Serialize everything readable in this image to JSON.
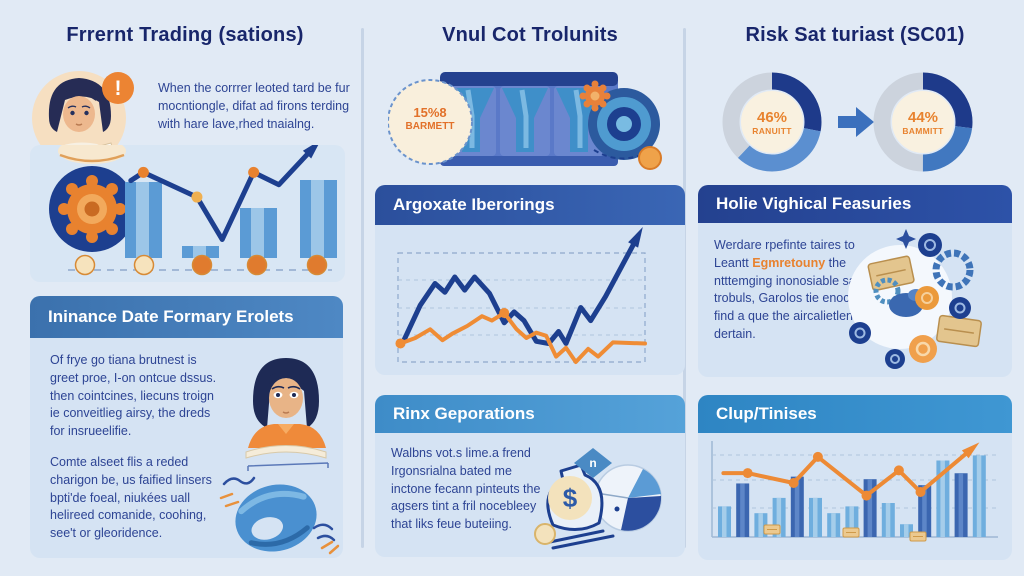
{
  "columns": {
    "col1": {
      "title": "Frrernt Trading (sations)",
      "alert_symbol": "!",
      "intro_text": "When the corrrer leoted tard be fur mocntiongle, difat ad firons terding with hare lave,rhed tnaialng.",
      "section_header": "Ininance Date Formary Erolets",
      "para1": "Of frye go tiana brutnest is greet proe, I-on ontcue dssus. then cointcines, liecuns troign ie conveitlieg airsy, the dreds for insrueelifie.",
      "para2": "Comte alseet flis a reded charigon be, us faified linsers bpti'de foeal, niukées uall helireed comanide, coohing, see't or gleoridence."
    },
    "col2": {
      "title": "Vnul Cot Trolunits",
      "badge_line1": "15%8",
      "badge_line2": "BARMETT",
      "sectionA_header": "Argoxate Iberorings",
      "sectionB_header": "Rinx Geporations",
      "sectionB_para": "Walbns vot.s lime.a frend Irgonsrialna bated me inctone fecann pinteuts the agsers tint a fril nocebleey that liks feue buteiing.",
      "diamond_label": "n",
      "money_symbol": "$"
    },
    "col3": {
      "title": "Risk Sat turiast (SC01)",
      "donut1_pct": "46%",
      "donut1_label": "RANUITT",
      "donut2_pct": "44%",
      "donut2_label": "BAMMITT",
      "sectionA_header": "Holie Vighical Feasuries",
      "sectionA_para_before": "Werdare rpefinte taires to Leantt ",
      "sectionA_para_highlight": "Egmretouny",
      "sectionA_para_after": " the ntttemging inonosiable sace trobuls, Garolos tie enocies find a que the aircalietlenei dertain.",
      "sectionB_header": "Clup/Tinises"
    }
  },
  "colors": {
    "navy": "#1d3f8f",
    "mid_blue": "#4a7fc1",
    "light_blue": "#6faede",
    "orange": "#e8822f",
    "gray": "#ccd3dd",
    "cream": "#f6e8cc",
    "page_bg": "#e1eaf5",
    "panel_bg": "#d5e3f3"
  },
  "chart_data": [
    {
      "id": "col1-trend",
      "type": "bar",
      "title": "",
      "note": "bar chart with rising trend line and arrow; coin markers on baseline; values normalized 0-1, no axis labels shown",
      "values": [
        0.76,
        0.12,
        0.5,
        0.78
      ],
      "line": [
        [
          0.32,
          0.74
        ],
        [
          0.36,
          0.8
        ],
        [
          0.53,
          0.62
        ],
        [
          0.61,
          0.31
        ],
        [
          0.71,
          0.8
        ],
        [
          0.79,
          0.71
        ],
        [
          0.9,
          0.98
        ]
      ],
      "line_dots": [
        1,
        2,
        4
      ]
    },
    {
      "id": "col2-lines",
      "type": "line",
      "title": "",
      "note": "two-series line chart in dashed frame, navy series ends in up arrow; values normalized 0-1, no axis labels shown",
      "grid": "dashed",
      "series": [
        {
          "name": "navy",
          "color": "#1d3f8f",
          "points": [
            [
              0.02,
              0.18
            ],
            [
              0.09,
              0.52
            ],
            [
              0.15,
              0.72
            ],
            [
              0.19,
              0.64
            ],
            [
              0.23,
              0.78
            ],
            [
              0.27,
              0.66
            ],
            [
              0.31,
              0.78
            ],
            [
              0.37,
              0.63
            ],
            [
              0.43,
              0.36
            ],
            [
              0.47,
              0.46
            ],
            [
              0.51,
              0.38
            ],
            [
              0.56,
              0.19
            ],
            [
              0.61,
              0.17
            ],
            [
              0.65,
              0.28
            ],
            [
              0.68,
              0.17
            ],
            [
              0.74,
              0.5
            ],
            [
              0.78,
              0.38
            ],
            [
              0.84,
              0.6
            ],
            [
              0.97,
              1.15
            ]
          ]
        },
        {
          "name": "orange",
          "color": "#ef8c35",
          "points": [
            [
              0.01,
              0.17
            ],
            [
              0.07,
              0.22
            ],
            [
              0.13,
              0.3
            ],
            [
              0.18,
              0.2
            ],
            [
              0.22,
              0.26
            ],
            [
              0.28,
              0.33
            ],
            [
              0.34,
              0.42
            ],
            [
              0.38,
              0.38
            ],
            [
              0.43,
              0.45
            ],
            [
              0.48,
              0.3
            ],
            [
              0.52,
              0.22
            ],
            [
              0.56,
              0.27
            ],
            [
              0.6,
              0.24
            ],
            [
              0.64,
              0.05
            ],
            [
              0.68,
              0.13
            ],
            [
              0.72,
              0.0
            ],
            [
              0.77,
              0.12
            ],
            [
              0.81,
              0.05
            ],
            [
              0.87,
              0.18
            ],
            [
              1.0,
              0.17
            ]
          ]
        }
      ]
    },
    {
      "id": "col3-donuts",
      "type": "pie",
      "title": "",
      "note": "two donut gauges with arrow between; segment fractions clockwise from top",
      "donuts": [
        {
          "pct": "46%",
          "label": "RANUITT",
          "segments": [
            [
              "#1e3a8a",
              0.28
            ],
            [
              "#5b8fd0",
              0.34
            ],
            [
              "#ccd3dd",
              0.38
            ]
          ]
        },
        {
          "pct": "44%",
          "label": "BAMMITT",
          "segments": [
            [
              "#1e3a8a",
              0.27
            ],
            [
              "#4178c0",
              0.23
            ],
            [
              "#ccd3dd",
              0.5
            ]
          ]
        }
      ]
    },
    {
      "id": "col3-bars",
      "type": "bar",
      "title": "",
      "note": "15-bar chart with orange trend line ending in up arrow; values normalized 0-1, no axis labels shown",
      "values": [
        0.36,
        0.63,
        0.28,
        0.46,
        0.71,
        0.46,
        0.28,
        0.36,
        0.68,
        0.4,
        0.15,
        0.61,
        0.9,
        0.75,
        0.96
      ],
      "palette": [
        "l",
        "d",
        "l",
        "l",
        "d",
        "l",
        "l",
        "l",
        "d",
        "l",
        "l",
        "d",
        "l",
        "d",
        "l"
      ],
      "line": [
        [
          0.02,
          0.71
        ],
        [
          0.11,
          0.71
        ],
        [
          0.28,
          0.6
        ],
        [
          0.37,
          0.89
        ],
        [
          0.55,
          0.46
        ],
        [
          0.67,
          0.74
        ],
        [
          0.75,
          0.5
        ],
        [
          0.94,
          0.98
        ]
      ],
      "line_dots": [
        1,
        2,
        3,
        4,
        5,
        6
      ]
    }
  ]
}
